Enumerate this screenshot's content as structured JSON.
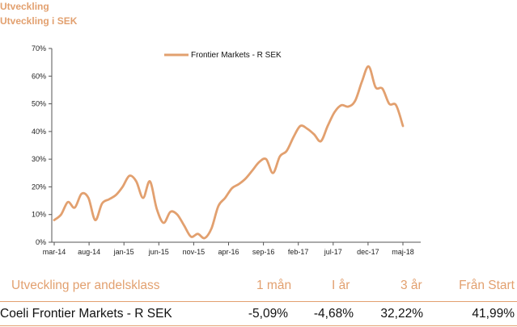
{
  "header": {
    "title": "Utveckling",
    "subtitle": "Utveckling i SEK"
  },
  "chart_data": {
    "type": "line",
    "y_ticks": [
      "0%",
      "10%",
      "20%",
      "30%",
      "40%",
      "50%",
      "60%",
      "70%"
    ],
    "ylim": [
      0,
      70
    ],
    "x_ticks": [
      "mar-14",
      "aug-14",
      "jan-15",
      "jun-15",
      "nov-15",
      "apr-16",
      "sep-16",
      "feb-17",
      "jul-17",
      "dec-17",
      "maj-18"
    ],
    "grid": false,
    "legend_position": "top-center",
    "color": "#E2A06F",
    "series": [
      {
        "name": "Frontier Markets - R SEK",
        "values": [
          8,
          10,
          14.5,
          12.5,
          17.5,
          16,
          8,
          14,
          15.5,
          17,
          20,
          24,
          22,
          16,
          22,
          12,
          7,
          11,
          10,
          6,
          2,
          3,
          1.5,
          5,
          13,
          16,
          19.5,
          21,
          23,
          26,
          29,
          30,
          25,
          31,
          33,
          38,
          42,
          41,
          39,
          36.5,
          42,
          47,
          49.5,
          49,
          51,
          58,
          63.5,
          56,
          55.5,
          50,
          49.5,
          42
        ]
      }
    ]
  },
  "performance": {
    "header": [
      "Utveckling per andelsklass",
      "1 mån",
      "I år",
      "3 år",
      "Från Start"
    ],
    "rows": [
      {
        "name": "Coeli Frontier Markets - R SEK",
        "m1": "-5,09%",
        "ytd": "-4,68%",
        "y3": "32,22%",
        "start": "41,99%"
      }
    ]
  }
}
